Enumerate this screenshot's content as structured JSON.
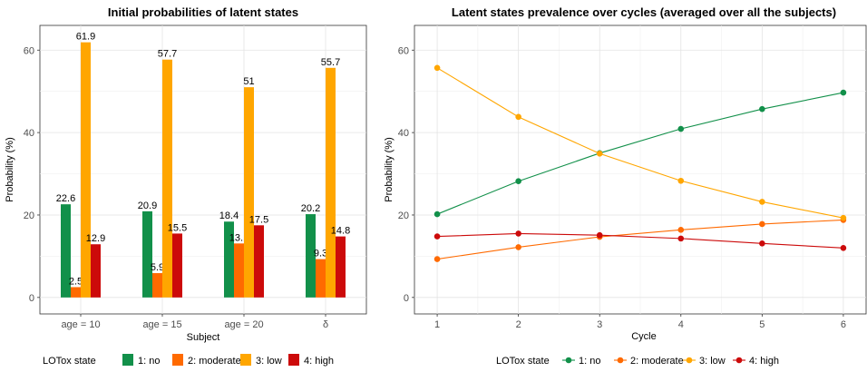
{
  "legend": {
    "title": "LOTox state",
    "items": [
      "1: no",
      "2: moderate",
      "3: low",
      "4: high"
    ]
  },
  "colors": [
    "#12904a",
    "#ff6a00",
    "#ffa600",
    "#cc0a0a"
  ],
  "chart_data": [
    {
      "type": "bar",
      "title": "Initial probabilities of latent states",
      "xlabel": "Subject",
      "ylabel": "Probability (%)",
      "ylim": [
        -4,
        66
      ],
      "yticks": [
        0,
        20,
        40,
        60
      ],
      "categories": [
        "age = 10",
        "age = 15",
        "age = 20",
        "δ"
      ],
      "series": [
        {
          "name": "1: no",
          "values": [
            22.6,
            20.9,
            18.4,
            20.2
          ],
          "labels": [
            "22.6",
            "20.9",
            "18.4",
            "20.2"
          ]
        },
        {
          "name": "2: moderate",
          "values": [
            2.5,
            5.9,
            13.1,
            9.3
          ],
          "labels": [
            "2.5",
            "5.9",
            "13.1",
            "9.3"
          ]
        },
        {
          "name": "3: low",
          "values": [
            61.9,
            57.7,
            51,
            55.7
          ],
          "labels": [
            "61.9",
            "57.7",
            "51",
            "55.7"
          ]
        },
        {
          "name": "4: high",
          "values": [
            12.9,
            15.5,
            17.5,
            14.8
          ],
          "labels": [
            "12.9",
            "15.5",
            "17.5",
            "14.8"
          ]
        }
      ],
      "grid": true,
      "legend_position": "bottom"
    },
    {
      "type": "line",
      "title": "Latent states prevalence over cycles (averaged over all the subjects)",
      "xlabel": "Cycle",
      "ylabel": "Probability (%)",
      "xlim": [
        0.72,
        6.28
      ],
      "ylim": [
        -4,
        66
      ],
      "xticks": [
        1,
        2,
        3,
        4,
        5,
        6
      ],
      "yticks": [
        0,
        20,
        40,
        60
      ],
      "x": [
        1,
        2,
        3,
        4,
        5,
        6
      ],
      "series": [
        {
          "name": "1: no",
          "values": [
            20.2,
            28.2,
            35.0,
            40.9,
            45.7,
            49.7
          ]
        },
        {
          "name": "2: moderate",
          "values": [
            9.3,
            12.2,
            14.7,
            16.4,
            17.8,
            18.8
          ]
        },
        {
          "name": "3: low",
          "values": [
            55.7,
            43.8,
            34.9,
            28.3,
            23.2,
            19.3
          ]
        },
        {
          "name": "4: high",
          "values": [
            14.8,
            15.5,
            15.1,
            14.3,
            13.1,
            12.0
          ]
        }
      ],
      "grid": true,
      "legend_position": "bottom"
    }
  ]
}
